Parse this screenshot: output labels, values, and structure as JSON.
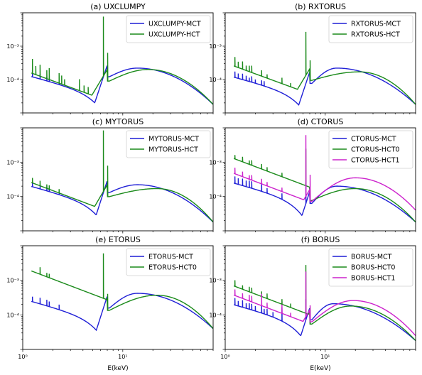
{
  "chart_data": [
    {
      "type": "line",
      "title": "(a) UXCLUMPY",
      "xlabel": "",
      "ylabel": "",
      "xscale": "log",
      "yscale": "log",
      "xlim": [
        1,
        80
      ],
      "ylim": [
        1e-05,
        0.01
      ],
      "legend": "top-right",
      "series": [
        {
          "name": "UXCLUMPY-MCT",
          "color": "#1f1fd6",
          "shape": "mct",
          "norm": 0.000125,
          "peak_e": 7.0,
          "peak_v": 0.00027,
          "hump_e": 14,
          "hump_v": 0.00022,
          "end_v": 1.8e-05,
          "spikes": [
            [
              1.25,
              1.6
            ],
            [
              1.49,
              1.4
            ],
            [
              1.74,
              1.3
            ],
            [
              1.84,
              1.3
            ],
            [
              2.31,
              1.5
            ]
          ]
        },
        {
          "name": "UXCLUMPY-HCT",
          "color": "#1a8a1a",
          "shape": "hct",
          "norm": 0.00016,
          "peak_e": 7.0,
          "peak_v": 0.0002,
          "hump_e": 18,
          "hump_v": 0.0002,
          "end_v": 1.8e-05,
          "spikes": [
            [
              1.25,
              2.7
            ],
            [
              1.35,
              1.8
            ],
            [
              1.49,
              2.2
            ],
            [
              1.74,
              1.8
            ],
            [
              1.84,
              2.2
            ],
            [
              2.31,
              2.0
            ],
            [
              2.45,
              1.8
            ],
            [
              2.62,
              1.5
            ],
            [
              3.69,
              2.2
            ],
            [
              4.1,
              1.6
            ],
            [
              4.51,
              1.6
            ],
            [
              6.4,
              60
            ],
            [
              7.06,
              7
            ]
          ]
        }
      ]
    },
    {
      "type": "line",
      "title": "(b) RXTORUS",
      "xlabel": "",
      "ylabel": "",
      "xscale": "log",
      "yscale": "log",
      "xlim": [
        1,
        80
      ],
      "ylim": [
        1e-05,
        0.01
      ],
      "legend": "top-right",
      "series": [
        {
          "name": "RXTORUS-MCT",
          "color": "#1f1fd6",
          "shape": "mct",
          "norm": 0.00012,
          "peak_e": 7.0,
          "peak_v": 0.00017,
          "hump_e": 13,
          "hump_v": 0.00022,
          "end_v": 1.8e-05,
          "spikes": [
            [
              1.25,
              1.5
            ],
            [
              1.35,
              1.4
            ],
            [
              1.49,
              1.5
            ],
            [
              1.62,
              1.4
            ],
            [
              1.74,
              1.3
            ],
            [
              1.84,
              1.5
            ],
            [
              2.0,
              1.3
            ],
            [
              2.31,
              1.4
            ],
            [
              2.45,
              1.4
            ]
          ]
        },
        {
          "name": "RXTORUS-HCT",
          "color": "#1a8a1a",
          "shape": "hct",
          "norm": 0.00026,
          "peak_e": 7.0,
          "peak_v": 0.00021,
          "hump_e": 22,
          "hump_v": 0.00017,
          "end_v": 1.8e-05,
          "spikes": [
            [
              1.25,
              1.9
            ],
            [
              1.35,
              1.5
            ],
            [
              1.49,
              1.7
            ],
            [
              1.62,
              1.4
            ],
            [
              1.74,
              1.5
            ],
            [
              1.84,
              1.6
            ],
            [
              2.31,
              1.5
            ],
            [
              2.62,
              1.3
            ],
            [
              3.69,
              1.5
            ],
            [
              4.51,
              1.3
            ],
            [
              6.4,
              20
            ],
            [
              7.06,
              4
            ]
          ]
        }
      ]
    },
    {
      "type": "line",
      "title": "(c) MYTORUS",
      "xlabel": "",
      "ylabel": "",
      "xscale": "log",
      "yscale": "log",
      "xlim": [
        1,
        80
      ],
      "ylim": [
        1e-05,
        0.01
      ],
      "legend": "top-right",
      "series": [
        {
          "name": "MYTORUS-MCT",
          "color": "#1f1fd6",
          "shape": "mct",
          "norm": 0.0002,
          "peak_e": 7.0,
          "peak_v": 0.00029,
          "hump_e": 14,
          "hump_v": 0.00022,
          "end_v": 1.8e-05,
          "spikes": [
            [
              1.25,
              1.3
            ],
            [
              1.49,
              1.3
            ],
            [
              1.74,
              1.3
            ],
            [
              1.84,
              1.3
            ],
            [
              2.31,
              1.4
            ]
          ]
        },
        {
          "name": "MYTORUS-HCT",
          "color": "#1a8a1a",
          "shape": "hct",
          "norm": 0.00026,
          "peak_e": 7.0,
          "peak_v": 0.00022,
          "hump_e": 22,
          "hump_v": 0.00017,
          "end_v": 1.8e-05,
          "spikes": [
            [
              1.25,
              1.4
            ],
            [
              1.49,
              1.4
            ],
            [
              1.74,
              1.3
            ],
            [
              1.84,
              1.3
            ],
            [
              2.31,
              1.3
            ],
            [
              6.4,
              60
            ],
            [
              7.06,
              8
            ]
          ]
        }
      ]
    },
    {
      "type": "line",
      "title": "(d) CTORUS",
      "xlabel": "",
      "ylabel": "",
      "xscale": "log",
      "yscale": "log",
      "xlim": [
        1,
        80
      ],
      "ylim": [
        1e-05,
        0.01
      ],
      "legend": "top-right",
      "series": [
        {
          "name": "CTORUS-MCT",
          "color": "#1f1fd6",
          "shape": "mct",
          "norm": 0.00025,
          "peak_e": 7.0,
          "peak_v": 0.00014,
          "hump_e": 13,
          "hump_v": 0.0002,
          "end_v": 1.8e-05,
          "spikes": [
            [
              1.25,
              1.6
            ],
            [
              1.35,
              1.5
            ],
            [
              1.49,
              1.6
            ],
            [
              1.62,
              1.5
            ],
            [
              1.74,
              1.6
            ],
            [
              1.84,
              1.6
            ],
            [
              2.31,
              2.2
            ],
            [
              2.62,
              1.4
            ],
            [
              3.69,
              1.5
            ],
            [
              6.4,
              4
            ],
            [
              7.06,
              1.8
            ]
          ]
        },
        {
          "name": "CTORUS-HCT0",
          "color": "#1a8a1a",
          "shape": "hct",
          "norm": 0.0013,
          "peak_e": 7.0,
          "peak_v": 0.00017,
          "hump_e": 20,
          "hump_v": 0.00017,
          "end_v": 1.8e-05,
          "spikes": [
            [
              1.25,
              1.3
            ],
            [
              1.49,
              1.4
            ],
            [
              1.74,
              1.3
            ],
            [
              1.84,
              1.4
            ],
            [
              2.31,
              1.4
            ],
            [
              2.62,
              1.3
            ],
            [
              3.69,
              1.3
            ],
            [
              6.4,
              12
            ],
            [
              7.06,
              2
            ]
          ]
        },
        {
          "name": "CTORUS-HCT1",
          "color": "#cc22cc",
          "shape": "hct",
          "norm": 0.00048,
          "peak_e": 7.0,
          "peak_v": 0.00016,
          "hump_e": 20,
          "hump_v": 0.00035,
          "end_v": 4e-05,
          "spikes": [
            [
              1.25,
              1.5
            ],
            [
              1.49,
              1.4
            ],
            [
              1.74,
              1.3
            ],
            [
              1.84,
              1.4
            ],
            [
              2.31,
              1.4
            ],
            [
              2.62,
              1.3
            ],
            [
              3.69,
              1.3
            ],
            [
              6.4,
              60
            ],
            [
              7.06,
              6
            ]
          ]
        }
      ]
    },
    {
      "type": "line",
      "title": "(e) ETORUS",
      "xlabel": "E(keV)",
      "ylabel": "",
      "xscale": "log",
      "yscale": "log",
      "xlim": [
        1,
        80
      ],
      "ylim": [
        1e-05,
        0.01
      ],
      "legend": "top-right",
      "series": [
        {
          "name": "ETORUS-MCT",
          "color": "#1f1fd6",
          "shape": "mct",
          "norm": 0.00025,
          "peak_e": 7.0,
          "peak_v": 0.00035,
          "hump_e": 14,
          "hump_v": 0.00042,
          "end_v": 4e-05,
          "spikes": [
            [
              1.25,
              1.4
            ],
            [
              1.49,
              1.5
            ],
            [
              1.74,
              1.5
            ],
            [
              1.84,
              1.4
            ],
            [
              2.31,
              1.4
            ]
          ]
        },
        {
          "name": "ETORUS-HCT0",
          "color": "#1a8a1a",
          "shape": "hct",
          "norm": 0.0019,
          "peak_e": 7.0,
          "peak_v": 0.0003,
          "hump_e": 22,
          "hump_v": 0.00037,
          "end_v": 4e-05,
          "spikes": [
            [
              1.49,
              1.6
            ],
            [
              1.74,
              1.3
            ],
            [
              1.84,
              1.3
            ],
            [
              6.4,
              20
            ],
            [
              7.06,
              3
            ]
          ]
        }
      ]
    },
    {
      "type": "line",
      "title": "(f) BORUS",
      "xlabel": "E(keV)",
      "ylabel": "",
      "xscale": "log",
      "yscale": "log",
      "xlim": [
        1,
        80
      ],
      "ylim": [
        1e-05,
        0.01
      ],
      "legend": "top-right",
      "series": [
        {
          "name": "BORUS-MCT",
          "color": "#1f1fd6",
          "shape": "mct",
          "norm": 0.0002,
          "peak_e": 7.0,
          "peak_v": 0.00016,
          "hump_e": 12,
          "hump_v": 0.00021,
          "end_v": 1.8e-05,
          "spikes": [
            [
              1.25,
              1.6
            ],
            [
              1.35,
              1.4
            ],
            [
              1.49,
              1.6
            ],
            [
              1.62,
              1.4
            ],
            [
              1.74,
              1.5
            ],
            [
              1.84,
              1.5
            ],
            [
              2.0,
              1.4
            ],
            [
              2.31,
              1.8
            ],
            [
              2.45,
              1.4
            ],
            [
              2.62,
              1.5
            ],
            [
              3.0,
              1.4
            ],
            [
              3.69,
              2.5
            ],
            [
              6.4,
              4
            ]
          ]
        },
        {
          "name": "BORUS-HCT0",
          "color": "#1a8a1a",
          "shape": "hct",
          "norm": 0.0007,
          "peak_e": 7.0,
          "peak_v": 0.00012,
          "hump_e": 18,
          "hump_v": 0.00018,
          "end_v": 1.8e-05,
          "spikes": [
            [
              1.25,
              1.5
            ],
            [
              1.49,
              1.3
            ],
            [
              1.74,
              1.4
            ],
            [
              1.84,
              1.4
            ],
            [
              2.31,
              1.4
            ],
            [
              2.62,
              1.4
            ],
            [
              3.69,
              1.4
            ],
            [
              4.51,
              1.3
            ],
            [
              6.4,
              25
            ],
            [
              7.06,
              3
            ]
          ]
        },
        {
          "name": "BORUS-HCT1",
          "color": "#cc22cc",
          "shape": "hct",
          "norm": 0.00038,
          "peak_e": 7.0,
          "peak_v": 0.00014,
          "hump_e": 19,
          "hump_v": 0.00026,
          "end_v": 2.5e-05,
          "spikes": [
            [
              1.25,
              1.5
            ],
            [
              1.49,
              1.4
            ],
            [
              1.74,
              1.5
            ],
            [
              1.84,
              1.5
            ],
            [
              2.31,
              2.2
            ],
            [
              2.62,
              1.4
            ],
            [
              3.69,
              1.8
            ],
            [
              4.51,
              1.3
            ],
            [
              6.4,
              20
            ],
            [
              7.06,
              3
            ]
          ]
        }
      ]
    }
  ],
  "tick_labels": {
    "y_upper": "10⁻³",
    "y_lower": "10⁻⁴",
    "x_left": "10⁰",
    "x_right": "10¹"
  }
}
